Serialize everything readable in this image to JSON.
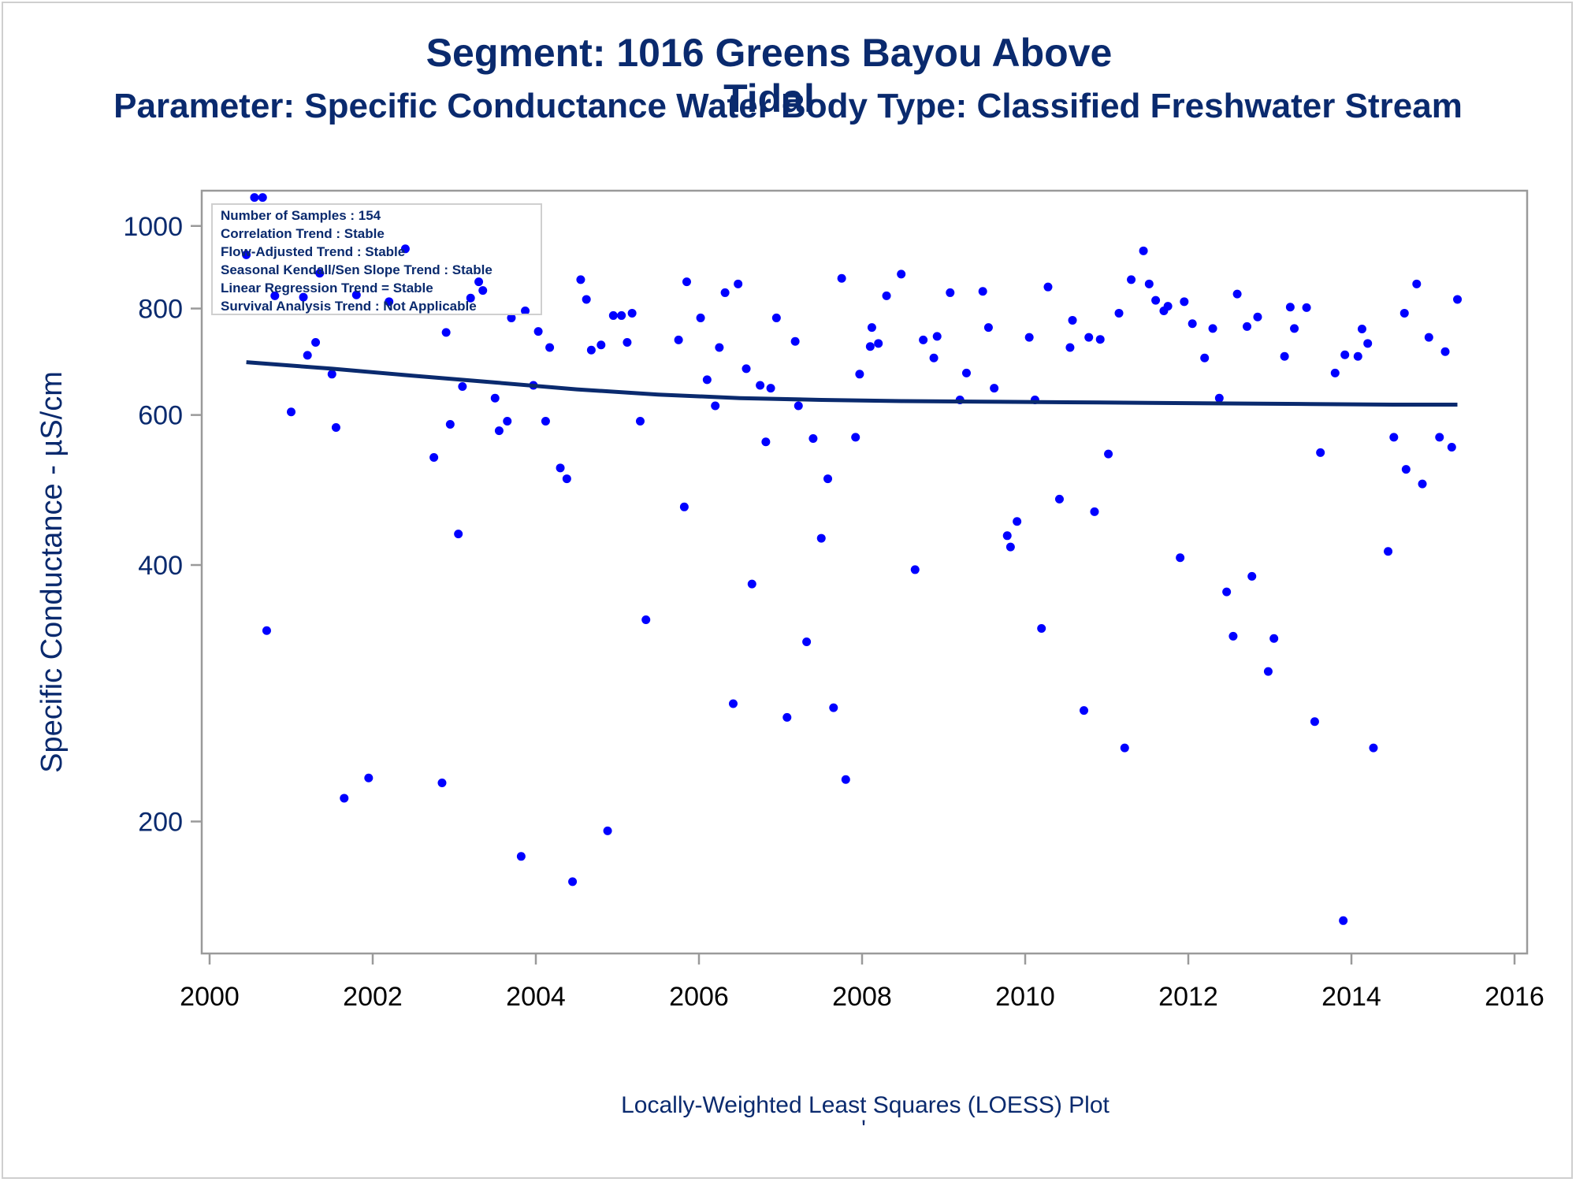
{
  "title": "Segment: 1016  Greens Bayou Above Tidal",
  "subtitle": "Parameter: Specific Conductance   Water Body Type: Classified Freshwater Stream",
  "footnote": "Locally-Weighted Least Squares (LOESS) Plot",
  "footnote_mark": "'",
  "inset": [
    "Number of Samples : 154",
    "Correlation Trend : Stable",
    "Flow-Adjusted Trend : Stable",
    "Seasonal Kendall/Sen Slope Trend : Stable",
    "Linear Regression Trend = Stable",
    "Survival Analysis Trend : Not Applicable"
  ],
  "colors": {
    "points": "#0000ff",
    "trend": "#0a2a6e",
    "text": "#0a2a6e",
    "axis": "#9a9a9a"
  },
  "chart_data": {
    "type": "scatter",
    "xlabel": "",
    "ylabel": "Specific Conductance -  µS/cm",
    "y_scale": "log",
    "xlim": [
      2000,
      2016
    ],
    "ylim": [
      140,
      1100
    ],
    "x_ticks": [
      "2000",
      "2002",
      "2004",
      "2006",
      "2008",
      "2010",
      "2012",
      "2014",
      "2016"
    ],
    "y_ticks": [
      "200",
      "400",
      "600",
      "800",
      "1000"
    ],
    "points": [
      [
        2000.45,
        925
      ],
      [
        2000.55,
        1080
      ],
      [
        2000.65,
        1080
      ],
      [
        2000.7,
        335
      ],
      [
        2000.8,
        828
      ],
      [
        2001.0,
        605
      ],
      [
        2001.15,
        825
      ],
      [
        2001.2,
        705
      ],
      [
        2001.3,
        730
      ],
      [
        2001.35,
        880
      ],
      [
        2001.5,
        670
      ],
      [
        2001.55,
        580
      ],
      [
        2001.65,
        213
      ],
      [
        2001.8,
        830
      ],
      [
        2001.95,
        225
      ],
      [
        2002.2,
        815
      ],
      [
        2002.4,
        940
      ],
      [
        2002.75,
        535
      ],
      [
        2002.85,
        222
      ],
      [
        2002.9,
        750
      ],
      [
        2002.95,
        585
      ],
      [
        2003.05,
        435
      ],
      [
        2003.1,
        648
      ],
      [
        2003.2,
        823
      ],
      [
        2003.3,
        860
      ],
      [
        2003.35,
        840
      ],
      [
        2003.5,
        628
      ],
      [
        2003.55,
        575
      ],
      [
        2003.65,
        590
      ],
      [
        2003.7,
        780
      ],
      [
        2003.82,
        182
      ],
      [
        2003.87,
        795
      ],
      [
        2003.97,
        650
      ],
      [
        2004.03,
        752
      ],
      [
        2004.12,
        590
      ],
      [
        2004.17,
        720
      ],
      [
        2004.3,
        520
      ],
      [
        2004.38,
        505
      ],
      [
        2004.45,
        170
      ],
      [
        2004.55,
        865
      ],
      [
        2004.62,
        820
      ],
      [
        2004.68,
        715
      ],
      [
        2004.8,
        725
      ],
      [
        2004.88,
        195
      ],
      [
        2004.95,
        785
      ],
      [
        2005.05,
        785
      ],
      [
        2005.12,
        730
      ],
      [
        2005.18,
        790
      ],
      [
        2005.28,
        590
      ],
      [
        2005.35,
        345
      ],
      [
        2005.75,
        735
      ],
      [
        2005.82,
        468
      ],
      [
        2005.85,
        860
      ],
      [
        2006.02,
        780
      ],
      [
        2006.1,
        660
      ],
      [
        2006.2,
        615
      ],
      [
        2006.25,
        720
      ],
      [
        2006.32,
        835
      ],
      [
        2006.42,
        275
      ],
      [
        2006.48,
        855
      ],
      [
        2006.58,
        680
      ],
      [
        2006.65,
        380
      ],
      [
        2006.75,
        650
      ],
      [
        2006.82,
        558
      ],
      [
        2006.88,
        645
      ],
      [
        2006.95,
        780
      ],
      [
        2007.08,
        265
      ],
      [
        2007.18,
        732
      ],
      [
        2007.22,
        615
      ],
      [
        2007.32,
        325
      ],
      [
        2007.4,
        563
      ],
      [
        2007.5,
        430
      ],
      [
        2007.58,
        505
      ],
      [
        2007.65,
        272
      ],
      [
        2007.75,
        868
      ],
      [
        2007.8,
        224
      ],
      [
        2007.92,
        565
      ],
      [
        2007.97,
        670
      ],
      [
        2008.1,
        722
      ],
      [
        2008.12,
        760
      ],
      [
        2008.2,
        728
      ],
      [
        2008.3,
        828
      ],
      [
        2008.48,
        878
      ],
      [
        2008.65,
        395
      ],
      [
        2008.75,
        735
      ],
      [
        2008.88,
        700
      ],
      [
        2008.92,
        742
      ],
      [
        2009.08,
        835
      ],
      [
        2009.2,
        625
      ],
      [
        2009.28,
        672
      ],
      [
        2009.48,
        838
      ],
      [
        2009.55,
        760
      ],
      [
        2009.62,
        645
      ],
      [
        2009.78,
        433
      ],
      [
        2009.82,
        420
      ],
      [
        2009.9,
        450
      ],
      [
        2010.05,
        740
      ],
      [
        2010.12,
        625
      ],
      [
        2010.2,
        337
      ],
      [
        2010.28,
        848
      ],
      [
        2010.42,
        478
      ],
      [
        2010.55,
        720
      ],
      [
        2010.58,
        775
      ],
      [
        2010.72,
        270
      ],
      [
        2010.78,
        740
      ],
      [
        2010.85,
        462
      ],
      [
        2010.92,
        736
      ],
      [
        2011.02,
        540
      ],
      [
        2011.15,
        790
      ],
      [
        2011.22,
        244
      ],
      [
        2011.3,
        865
      ],
      [
        2011.45,
        935
      ],
      [
        2011.52,
        855
      ],
      [
        2011.6,
        818
      ],
      [
        2011.7,
        795
      ],
      [
        2011.75,
        805
      ],
      [
        2011.9,
        408
      ],
      [
        2011.95,
        815
      ],
      [
        2012.05,
        768
      ],
      [
        2012.2,
        700
      ],
      [
        2012.3,
        758
      ],
      [
        2012.38,
        628
      ],
      [
        2012.47,
        372
      ],
      [
        2012.55,
        330
      ],
      [
        2012.6,
        832
      ],
      [
        2012.72,
        762
      ],
      [
        2012.78,
        388
      ],
      [
        2012.85,
        782
      ],
      [
        2012.98,
        300
      ],
      [
        2013.05,
        328
      ],
      [
        2013.18,
        703
      ],
      [
        2013.25,
        803
      ],
      [
        2013.3,
        758
      ],
      [
        2013.45,
        802
      ],
      [
        2013.55,
        262
      ],
      [
        2013.62,
        542
      ],
      [
        2013.8,
        672
      ],
      [
        2013.9,
        153
      ],
      [
        2013.92,
        706
      ],
      [
        2014.08,
        703
      ],
      [
        2014.13,
        757
      ],
      [
        2014.2,
        728
      ],
      [
        2014.27,
        244
      ],
      [
        2014.45,
        415
      ],
      [
        2014.52,
        565
      ],
      [
        2014.65,
        790
      ],
      [
        2014.67,
        518
      ],
      [
        2014.8,
        855
      ],
      [
        2014.87,
        498
      ],
      [
        2014.95,
        740
      ],
      [
        2015.08,
        565
      ],
      [
        2015.15,
        712
      ],
      [
        2015.23,
        550
      ],
      [
        2015.3,
        820
      ]
    ],
    "trend_line": [
      [
        2000.45,
        692
      ],
      [
        2001.5,
        680
      ],
      [
        2002.5,
        667
      ],
      [
        2003.5,
        655
      ],
      [
        2004.5,
        643
      ],
      [
        2005.5,
        634
      ],
      [
        2006.5,
        628
      ],
      [
        2007.5,
        625
      ],
      [
        2008.5,
        623
      ],
      [
        2009.5,
        622
      ],
      [
        2010.5,
        621
      ],
      [
        2011.5,
        620
      ],
      [
        2012.5,
        619
      ],
      [
        2013.5,
        618
      ],
      [
        2014.5,
        617
      ],
      [
        2015.3,
        617
      ]
    ]
  }
}
